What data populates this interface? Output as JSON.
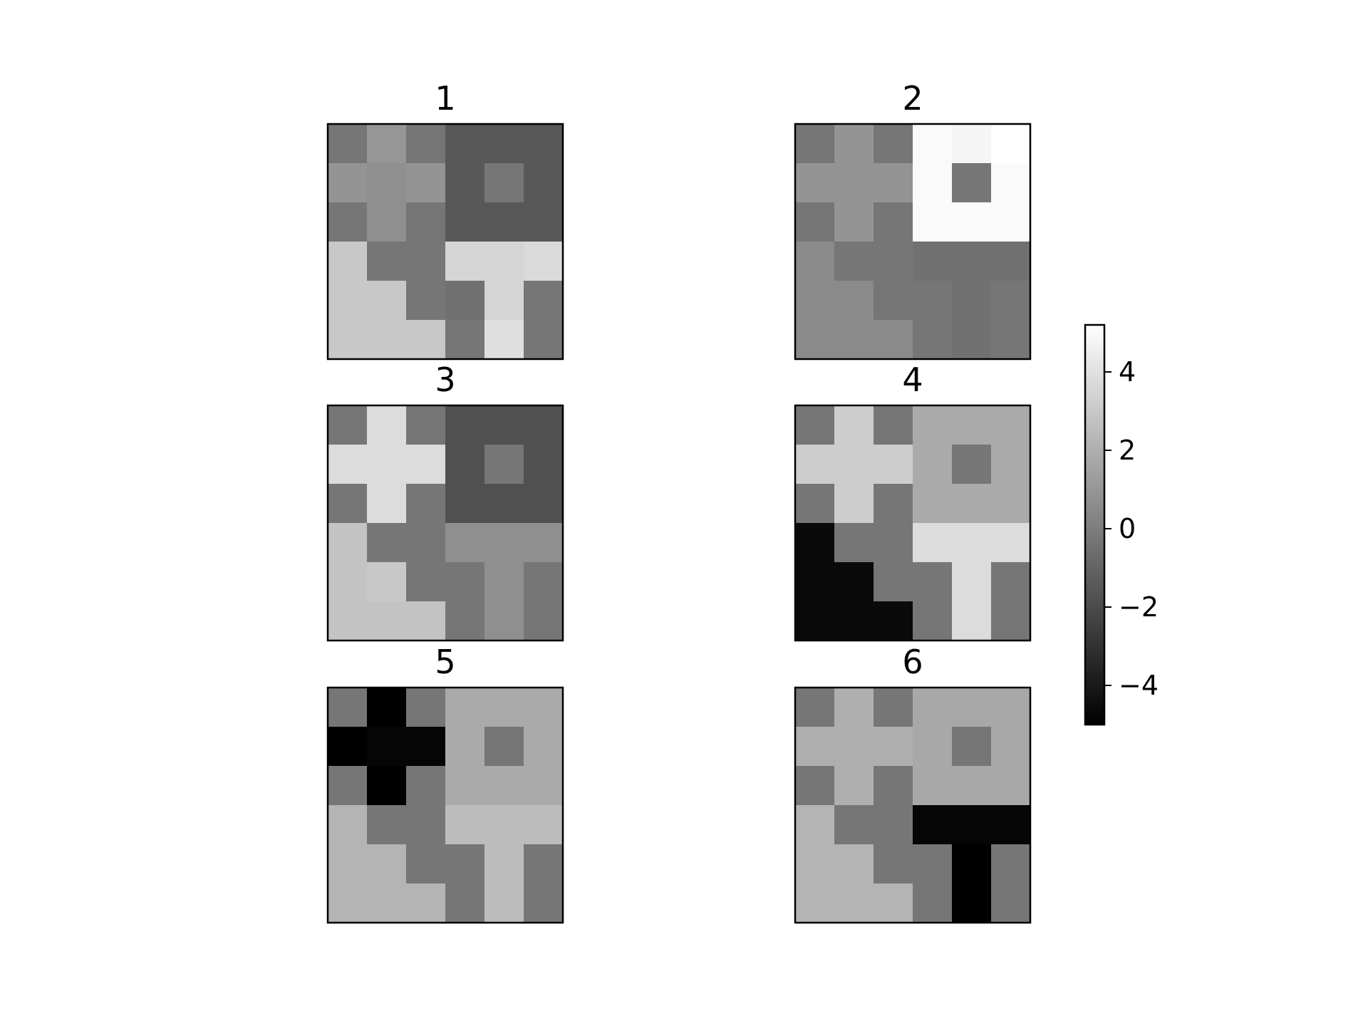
{
  "chart_data": {
    "type": "heatmap",
    "colormap": "gray",
    "vmin": -5,
    "vmax": 5.2,
    "colorbar": {
      "ticks": [
        -4,
        -2,
        0,
        2,
        4
      ],
      "tick_labels": [
        "−4",
        "−2",
        "0",
        "2",
        "4"
      ]
    },
    "panels": [
      {
        "title": "1",
        "values": [
          [
            -0.3,
            1.0,
            -0.3,
            -1.5,
            -1.5,
            -1.5
          ],
          [
            0.9,
            0.7,
            0.9,
            -1.5,
            -0.3,
            -1.5
          ],
          [
            -0.3,
            0.7,
            -0.3,
            -1.5,
            -1.5,
            -1.5
          ],
          [
            3.0,
            -0.3,
            -0.3,
            3.5,
            3.5,
            3.7
          ],
          [
            3.0,
            3.0,
            -0.3,
            -0.5,
            3.5,
            -0.3
          ],
          [
            3.0,
            3.0,
            3.0,
            -0.3,
            3.9,
            -0.3
          ]
        ]
      },
      {
        "title": "2",
        "values": [
          [
            -0.3,
            0.9,
            -0.3,
            5.0,
            4.8,
            5.2
          ],
          [
            0.9,
            0.9,
            0.9,
            5.0,
            -0.3,
            5.0
          ],
          [
            -0.3,
            0.9,
            -0.3,
            5.0,
            5.0,
            5.0
          ],
          [
            0.5,
            -0.3,
            -0.3,
            -0.5,
            -0.5,
            -0.5
          ],
          [
            0.5,
            0.5,
            -0.3,
            -0.3,
            -0.5,
            -0.3
          ],
          [
            0.5,
            0.5,
            0.5,
            -0.3,
            -0.5,
            -0.3
          ]
        ]
      },
      {
        "title": "3",
        "values": [
          [
            -0.3,
            3.8,
            -0.3,
            -1.8,
            -1.8,
            -1.8
          ],
          [
            3.8,
            3.8,
            3.8,
            -1.8,
            -0.3,
            -1.8
          ],
          [
            -0.3,
            3.8,
            -0.3,
            -1.8,
            -1.8,
            -1.8
          ],
          [
            2.8,
            -0.3,
            -0.3,
            0.7,
            0.7,
            0.7
          ],
          [
            2.8,
            3.0,
            -0.3,
            -0.3,
            0.7,
            -0.3
          ],
          [
            2.8,
            2.8,
            2.8,
            -0.3,
            0.7,
            -0.3
          ]
        ]
      },
      {
        "title": "4",
        "values": [
          [
            -0.3,
            3.2,
            -0.3,
            1.8,
            1.8,
            1.8
          ],
          [
            3.2,
            3.2,
            3.2,
            1.8,
            -0.3,
            1.8
          ],
          [
            -0.3,
            3.2,
            -0.3,
            1.8,
            1.8,
            1.8
          ],
          [
            -4.6,
            -0.3,
            -0.3,
            3.8,
            3.8,
            3.8
          ],
          [
            -4.6,
            -4.6,
            -0.3,
            -0.3,
            3.8,
            -0.3
          ],
          [
            -4.6,
            -4.6,
            -4.6,
            -0.3,
            3.8,
            -0.3
          ]
        ]
      },
      {
        "title": "5",
        "values": [
          [
            -0.3,
            -5.0,
            -0.3,
            1.8,
            1.8,
            1.8
          ],
          [
            -5.0,
            -4.8,
            -4.8,
            1.8,
            -0.3,
            1.8
          ],
          [
            -0.3,
            -5.0,
            -0.3,
            1.8,
            1.8,
            1.8
          ],
          [
            2.2,
            -0.3,
            -0.3,
            2.5,
            2.5,
            2.5
          ],
          [
            2.2,
            2.2,
            -0.3,
            -0.3,
            2.5,
            -0.3
          ],
          [
            2.2,
            2.2,
            2.2,
            -0.3,
            2.5,
            -0.3
          ]
        ]
      },
      {
        "title": "6",
        "values": [
          [
            -0.3,
            2.0,
            -0.3,
            1.7,
            1.7,
            1.7
          ],
          [
            2.0,
            2.0,
            2.0,
            1.7,
            -0.3,
            1.7
          ],
          [
            -0.3,
            2.0,
            -0.3,
            1.7,
            1.7,
            1.7
          ],
          [
            2.2,
            -0.3,
            -0.3,
            -4.8,
            -4.8,
            -4.8
          ],
          [
            2.2,
            2.2,
            -0.3,
            -0.3,
            -5.0,
            -0.3
          ],
          [
            2.2,
            2.2,
            2.2,
            -0.3,
            -5.0,
            -0.3
          ]
        ]
      }
    ]
  }
}
